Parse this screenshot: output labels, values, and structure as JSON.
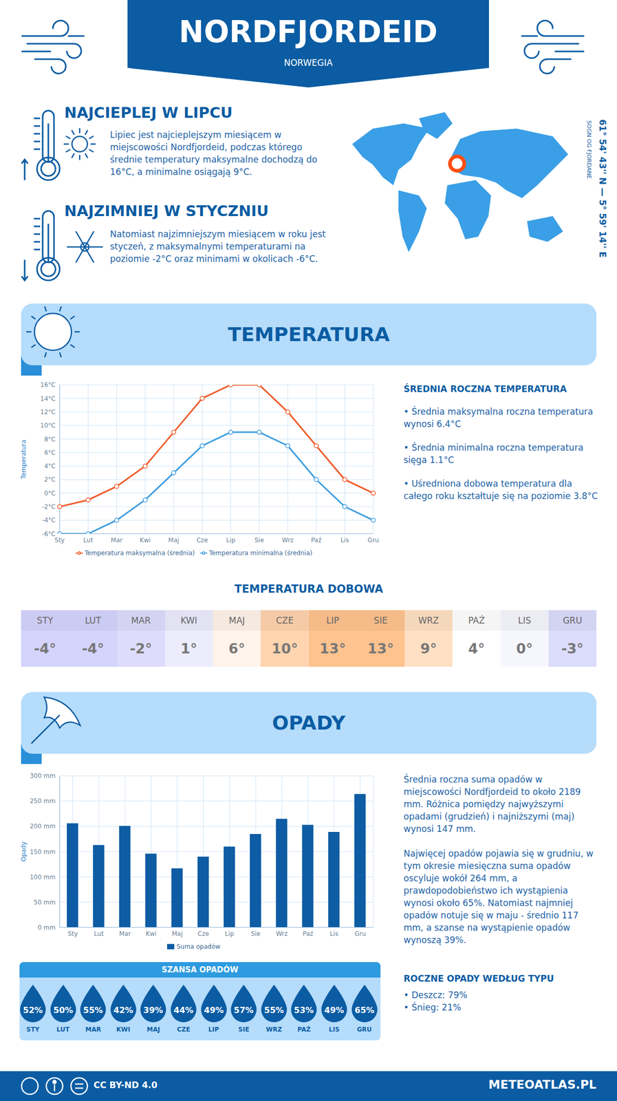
{
  "header": {
    "title": "NORDFJORDEID",
    "subtitle": "NORWEGIA"
  },
  "hottest": {
    "title": "NAJCIEPLEJ W LIPCU",
    "text": "Lipiec jest najcieplejszym miesiącem w miejscowości Nordfjordeid, podczas którego średnie temperatury maksymalne dochodzą do 16°C, a minimalne osiągają 9°C."
  },
  "coldest": {
    "title": "NAJZIMNIEJ W STYCZNIU",
    "text": "Natomiast najzimniejszym miesiącem w roku jest styczeń, z maksymalnymi temperaturami na poziomie -2°C oraz minimami w okolicach -6°C."
  },
  "location": {
    "coordinates": "61° 54' 43'' N — 5° 59' 14'' E",
    "region": "SOGN OG FJORDANE"
  },
  "temperature_section": {
    "title": "TEMPERATURA",
    "summary_title": "ŚREDNIA ROCZNA TEMPERATURA",
    "summary": [
      "• Średnia maksymalna roczna temperatura wynosi 6.4°C",
      "• Średnia minimalna roczna temperatura sięga 1.1°C",
      "• Uśredniona dobowa temperatura dla całego roku kształtuje się na poziomie 3.8°C"
    ]
  },
  "daily_temperature": {
    "title": "TEMPERATURA DOBOWA",
    "months": [
      "STY",
      "LUT",
      "MAR",
      "KWI",
      "MAJ",
      "CZE",
      "LIP",
      "SIE",
      "WRZ",
      "PAŹ",
      "LIS",
      "GRU"
    ],
    "values": [
      -4,
      -4,
      -2,
      1,
      6,
      10,
      13,
      13,
      9,
      4,
      0,
      -3
    ],
    "value_labels": [
      "-4°",
      "-4°",
      "-2°",
      "1°",
      "6°",
      "10°",
      "13°",
      "13°",
      "9°",
      "4°",
      "0°",
      "-3°"
    ],
    "colors": [
      "#d5d4fd",
      "#d5d4fd",
      "#dedcfc",
      "#ececfd",
      "#fff3ea",
      "#ffd4ae",
      "#ffc38f",
      "#ffc38f",
      "#ffe0c4",
      "#ffffff",
      "#f6f6fd",
      "#dcdcfc"
    ]
  },
  "precipitation_section": {
    "title": "OPADY",
    "summary": [
      "Średnia roczna suma opadów w miejscowości Nordfjordeid to około 2189 mm. Różnica pomiędzy najwyższymi opadami (grudzień) i najniższymi (maj) wynosi 147 mm.",
      "Najwięcej opadów pojawia się w grudniu, w tym okresie miesięczna suma opadów oscyluje wokół 264 mm, a prawdopodobieństwo ich wystąpienia wynosi około 65%. Natomiast najmniej opadów notuje się w maju - średnio 117 mm, a szanse na wystąpienie opadów wynoszą 39%."
    ],
    "type_title": "ROCZNE OPADY WEDŁUG TYPU",
    "types": [
      "• Deszcz: 79%",
      "• Śnieg: 21%"
    ]
  },
  "precipitation_chance": {
    "title": "SZANSA OPADÓW",
    "months": [
      "STY",
      "LUT",
      "MAR",
      "KWI",
      "MAJ",
      "CZE",
      "LIP",
      "SIE",
      "WRZ",
      "PAŹ",
      "LIS",
      "GRU"
    ],
    "values": [
      52,
      50,
      55,
      42,
      39,
      44,
      49,
      57,
      55,
      53,
      49,
      65
    ],
    "value_labels": [
      "52%",
      "50%",
      "55%",
      "42%",
      "39%",
      "44%",
      "49%",
      "57%",
      "55%",
      "53%",
      "49%",
      "65%"
    ]
  },
  "footer": {
    "license": "CC BY-ND 4.0",
    "site": "METEOATLAS.PL"
  },
  "chart_data": [
    {
      "type": "line",
      "y_label": "Temperatura",
      "categories": [
        "Sty",
        "Lut",
        "Mar",
        "Kwi",
        "Maj",
        "Cze",
        "Lip",
        "Sie",
        "Wrz",
        "Paź",
        "Lis",
        "Gru"
      ],
      "series": [
        {
          "name": "Temperatura maksymalna (średnia)",
          "color": "#f05a28",
          "marker": "circle",
          "values": [
            -2,
            -1,
            1,
            4,
            9,
            14,
            16,
            16,
            12,
            7,
            2,
            0
          ]
        },
        {
          "name": "Temperatura minimalna (średnia)",
          "color": "#3d9de0",
          "marker": "circle",
          "values": [
            -6,
            -6,
            -4,
            -1,
            3,
            7,
            9,
            9,
            7,
            2,
            -2,
            -4
          ]
        }
      ],
      "ylim": [
        -6,
        16
      ],
      "yticks": [
        {
          "value": -6,
          "label": "-6°C"
        },
        {
          "value": -4,
          "label": "-4°C"
        },
        {
          "value": -2,
          "label": "-2°C"
        },
        {
          "value": 0,
          "label": "0°C"
        },
        {
          "value": 2,
          "label": "2°C"
        },
        {
          "value": 4,
          "label": "4°C"
        },
        {
          "value": 6,
          "label": "6°C"
        },
        {
          "value": 8,
          "label": "8°C"
        },
        {
          "value": 10,
          "label": "10°C"
        },
        {
          "value": 12,
          "label": "12°C"
        },
        {
          "value": 14,
          "label": "14°C"
        },
        {
          "value": 16,
          "label": "16°C"
        }
      ],
      "grid": true,
      "legend": "bottom"
    },
    {
      "type": "bar",
      "y_label": "Opady",
      "categories": [
        "Sty",
        "Lut",
        "Mar",
        "Kwi",
        "Maj",
        "Cze",
        "Lip",
        "Sie",
        "Wrz",
        "Paź",
        "Lis",
        "Gru"
      ],
      "series": [
        {
          "name": "Suma opadów",
          "color": "#0d5ca4",
          "values": [
            206,
            163,
            201,
            146,
            117,
            140,
            160,
            185,
            215,
            203,
            189,
            264
          ]
        }
      ],
      "ylim": [
        0,
        300
      ],
      "yticks": [
        {
          "value": 0,
          "label": "0 mm"
        },
        {
          "value": 50,
          "label": "50 mm"
        },
        {
          "value": 100,
          "label": "100 mm"
        },
        {
          "value": 150,
          "label": "150 mm"
        },
        {
          "value": 200,
          "label": "200 mm"
        },
        {
          "value": 250,
          "label": "250 mm"
        },
        {
          "value": 300,
          "label": "300 mm"
        }
      ],
      "grid": true,
      "legend": "bottom"
    }
  ]
}
